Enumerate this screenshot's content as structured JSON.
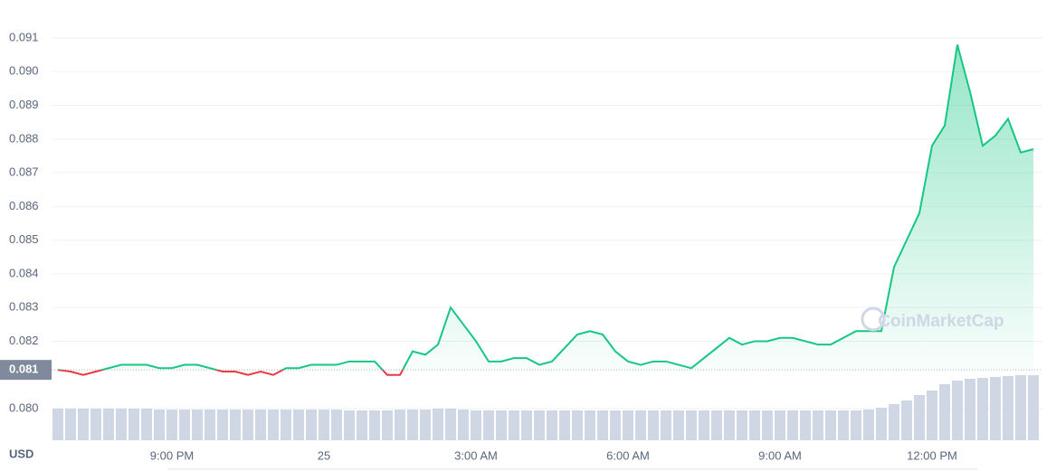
{
  "chart_data": {
    "type": "line",
    "currency": "USD",
    "watermark": "CoinMarketCap",
    "x": [
      "6:45 PM",
      "7:00 PM",
      "7:15 PM",
      "7:30 PM",
      "7:45 PM",
      "8:00 PM",
      "8:15 PM",
      "8:30 PM",
      "8:45 PM",
      "9:00 PM",
      "9:15 PM",
      "9:30 PM",
      "9:45 PM",
      "10:00 PM",
      "10:15 PM",
      "10:30 PM",
      "10:45 PM",
      "11:00 PM",
      "11:15 PM",
      "11:30 PM",
      "11:45 PM",
      "12:00 AM",
      "12:15 AM",
      "12:30 AM",
      "12:45 AM",
      "1:00 AM",
      "1:15 AM",
      "1:30 AM",
      "1:45 AM",
      "2:00 AM",
      "2:15 AM",
      "2:30 AM",
      "2:45 AM",
      "3:00 AM",
      "3:15 AM",
      "3:30 AM",
      "3:45 AM",
      "4:00 AM",
      "4:15 AM",
      "4:30 AM",
      "4:45 AM",
      "5:00 AM",
      "5:15 AM",
      "5:30 AM",
      "5:45 AM",
      "6:00 AM",
      "6:15 AM",
      "6:30 AM",
      "6:45 AM",
      "7:00 AM",
      "7:15 AM",
      "7:30 AM",
      "7:45 AM",
      "8:00 AM",
      "8:15 AM",
      "8:30 AM",
      "8:45 AM",
      "9:00 AM",
      "9:15 AM",
      "9:30 AM",
      "9:45 AM",
      "10:00 AM",
      "10:15 AM",
      "10:30 AM",
      "10:45 AM",
      "11:00 AM",
      "11:15 AM",
      "11:30 AM",
      "11:45 AM",
      "12:00 PM",
      "12:15 PM",
      "12:30 PM",
      "12:45 PM",
      "1:00 PM",
      "1:15 PM",
      "1:30 PM",
      "1:45 PM",
      "2:00 PM"
    ],
    "series": [
      {
        "name": "Price",
        "color": "#16c784",
        "below_color": "#ea3943",
        "values": [
          0.08115,
          0.0811,
          0.081,
          0.0811,
          0.0812,
          0.0813,
          0.0813,
          0.0813,
          0.0812,
          0.0812,
          0.0813,
          0.0813,
          0.0812,
          0.0811,
          0.0811,
          0.081,
          0.0811,
          0.081,
          0.0812,
          0.0812,
          0.0813,
          0.0813,
          0.0813,
          0.0814,
          0.0814,
          0.0814,
          0.081,
          0.081,
          0.0817,
          0.0816,
          0.0819,
          0.083,
          0.0825,
          0.082,
          0.0814,
          0.0814,
          0.0815,
          0.0815,
          0.0813,
          0.0814,
          0.0818,
          0.0822,
          0.0823,
          0.0822,
          0.0817,
          0.0814,
          0.0813,
          0.0814,
          0.0814,
          0.0813,
          0.0812,
          0.0815,
          0.0818,
          0.0821,
          0.0819,
          0.082,
          0.082,
          0.0821,
          0.0821,
          0.082,
          0.0819,
          0.0819,
          0.0821,
          0.0823,
          0.0823,
          0.0823,
          0.0842,
          0.085,
          0.0858,
          0.0878,
          0.0884,
          0.0908,
          0.0894,
          0.0878,
          0.0881,
          0.0886,
          0.0876,
          0.0877
        ]
      },
      {
        "name": "Volume",
        "color": "#cfd6e4",
        "values": [
          35,
          35,
          35,
          35,
          35,
          35,
          35,
          35,
          34,
          34,
          34,
          34,
          34,
          34,
          34,
          34,
          34,
          34,
          34,
          34,
          34,
          34,
          34,
          33,
          33,
          33,
          33,
          34,
          34,
          34,
          35,
          35,
          34,
          33,
          33,
          33,
          33,
          33,
          33,
          33,
          33,
          33,
          33,
          33,
          33,
          33,
          33,
          33,
          33,
          33,
          33,
          33,
          33,
          33,
          33,
          33,
          33,
          33,
          33,
          33,
          33,
          33,
          33,
          33,
          34,
          36,
          40,
          44,
          50,
          55,
          62,
          66,
          68,
          69,
          70,
          71,
          72,
          72
        ]
      }
    ],
    "reference_price": {
      "value": 0.08115,
      "label": "0.081"
    },
    "ylim": [
      0.08,
      0.091
    ],
    "yticks": [
      {
        "value": 0.08,
        "label": "0.080"
      },
      {
        "value": 0.082,
        "label": "0.082"
      },
      {
        "value": 0.083,
        "label": "0.083"
      },
      {
        "value": 0.084,
        "label": "0.084"
      },
      {
        "value": 0.085,
        "label": "0.085"
      },
      {
        "value": 0.086,
        "label": "0.086"
      },
      {
        "value": 0.087,
        "label": "0.087"
      },
      {
        "value": 0.088,
        "label": "0.088"
      },
      {
        "value": 0.089,
        "label": "0.089"
      },
      {
        "value": 0.09,
        "label": "0.090"
      },
      {
        "value": 0.091,
        "label": "0.091"
      }
    ],
    "xticks": [
      {
        "value": "9:00 PM",
        "label": "9:00 PM"
      },
      {
        "value": "12:00 AM",
        "label": "25"
      },
      {
        "value": "3:00 AM",
        "label": "3:00 AM"
      },
      {
        "value": "6:00 AM",
        "label": "6:00 AM"
      },
      {
        "value": "9:00 AM",
        "label": "9:00 AM"
      },
      {
        "value": "12:00 PM",
        "label": "12:00 PM"
      }
    ],
    "grid": true
  }
}
